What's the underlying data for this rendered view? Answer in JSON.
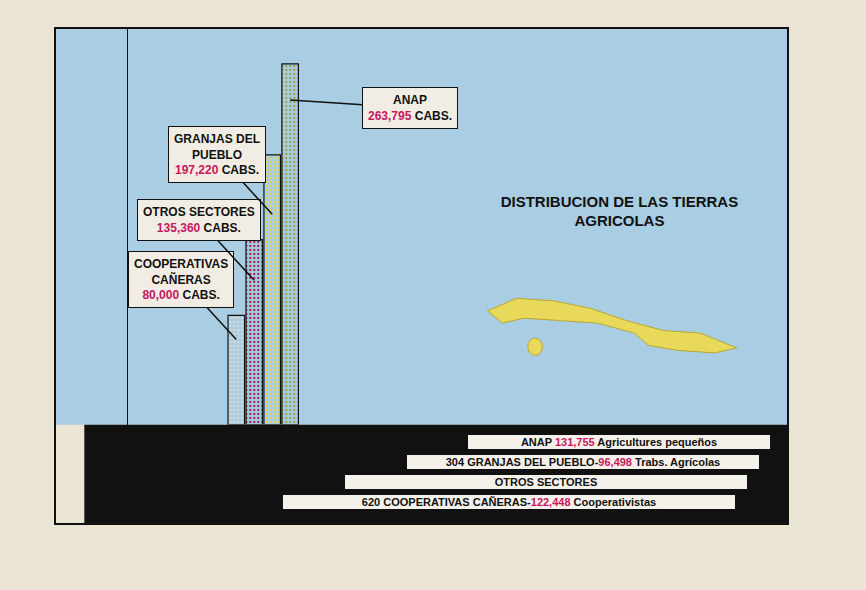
{
  "chart_data": {
    "type": "bar",
    "title": "DISTRIBUCION DE LAS TIERRAS AGRICOLAS",
    "categories": [
      "COOPERATIVAS CAÑERAS",
      "OTROS SECTORES",
      "GRANJAS DEL PUEBLO",
      "ANAP"
    ],
    "values": [
      80000,
      135360,
      197220,
      263795
    ],
    "value_labels": [
      "80,000 CABS.",
      "135,360 CABS.",
      "197,220 CABS.",
      "263,795 CABS."
    ],
    "colors": [
      "#d9d9d2",
      "#9a1f45",
      "#e6d645",
      "#a09c3a"
    ],
    "data_labels": true,
    "tick_labels": false,
    "grid": false,
    "ylim": [
      0,
      290000
    ],
    "annotations": [
      "ANAP 131,755 Agricultures pequeños",
      "304 GRANJAS DEL PUEBLO-96,498 Trabs. Agrícolas",
      "OTROS SECTORES",
      "620 COOPERATIVAS CAÑERAS-122,448 Cooperativistas"
    ]
  }
}
